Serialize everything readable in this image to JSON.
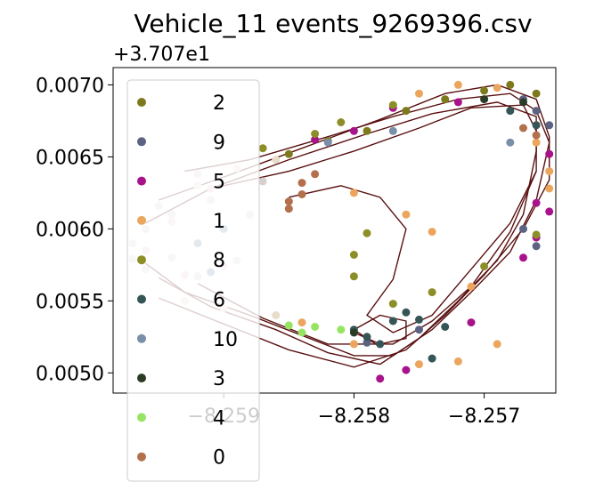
{
  "chart_data": {
    "type": "scatter",
    "title": "Vehicle_11 events_9269396.csv",
    "y_offset_label": "+3.707e1",
    "xlabel": "",
    "ylabel": "",
    "xlim": [
      -8.25985,
      -8.25645
    ],
    "ylim": [
      0.00486,
      0.00712
    ],
    "x_ticks": [
      {
        "value": -8.259,
        "label": "−8.259"
      },
      {
        "value": -8.258,
        "label": "−8.258"
      },
      {
        "value": -8.257,
        "label": "−8.257"
      }
    ],
    "y_ticks": [
      {
        "value": 0.005,
        "label": "0.0050"
      },
      {
        "value": 0.0055,
        "label": "0.0055"
      },
      {
        "value": 0.006,
        "label": "0.0060"
      },
      {
        "value": 0.0065,
        "label": "0.0065"
      },
      {
        "value": 0.007,
        "label": "0.0070"
      }
    ],
    "grid": false,
    "legend_position": "upper-left",
    "trajectory_color": "#5a1010",
    "series": [
      {
        "name": "2",
        "color": "#7d7a1e",
        "points": [
          [
            -8.2585,
            0.00652
          ],
          [
            -8.2582,
            0.00661
          ],
          [
            -8.2579,
            0.00668
          ],
          [
            -8.2576,
            0.00682
          ],
          [
            -8.2573,
            0.0069
          ],
          [
            -8.257,
            0.00696
          ],
          [
            -8.2568,
            0.007
          ],
          [
            -8.2566,
            0.00694
          ]
        ]
      },
      {
        "name": "9",
        "color": "#5b6282",
        "points": [
          [
            -8.2567,
            0.0069
          ],
          [
            -8.2566,
            0.00682
          ],
          [
            -8.2565,
            0.00672
          ],
          [
            -8.2567,
            0.006
          ],
          [
            -8.2566,
            0.00588
          ],
          [
            -8.2575,
            0.0053
          ],
          [
            -8.2579,
            0.00521
          ]
        ]
      },
      {
        "name": "5",
        "color": "#a8138b",
        "points": [
          [
            -8.2583,
            0.00662
          ],
          [
            -8.258,
            0.00668
          ],
          [
            -8.2577,
            0.00684
          ],
          [
            -8.2572,
            0.00688
          ],
          [
            -8.2566,
            0.00618
          ],
          [
            -8.2565,
            0.00612
          ],
          [
            -8.2566,
            0.00594
          ],
          [
            -8.2567,
            0.0058
          ],
          [
            -8.2576,
            0.00502
          ],
          [
            -8.2578,
            0.00496
          ],
          [
            -8.2571,
            0.00535
          ],
          [
            -8.2565,
            0.00652
          ]
        ]
      },
      {
        "name": "1",
        "color": "#eba55c",
        "points": [
          [
            -8.258,
            0.00625
          ],
          [
            -8.2576,
            0.0061
          ],
          [
            -8.2574,
            0.00598
          ],
          [
            -8.2571,
            0.0056
          ],
          [
            -8.2569,
            0.0052
          ],
          [
            -8.2572,
            0.00508
          ],
          [
            -8.2575,
            0.00506
          ],
          [
            -8.258,
            0.0052
          ],
          [
            -8.2584,
            0.00535
          ],
          [
            -8.2575,
            0.00694
          ],
          [
            -8.2572,
            0.007
          ],
          [
            -8.2569,
            0.00698
          ],
          [
            -8.2566,
            0.0066
          ],
          [
            -8.2565,
            0.0064
          ],
          [
            -8.2565,
            0.00628
          ]
        ]
      },
      {
        "name": "8",
        "color": "#8c8e28",
        "points": [
          [
            -8.2579,
            0.00597
          ],
          [
            -8.258,
            0.00582
          ],
          [
            -8.258,
            0.00567
          ],
          [
            -8.2577,
            0.00548
          ],
          [
            -8.2574,
            0.00556
          ],
          [
            -8.257,
            0.00574
          ],
          [
            -8.2566,
            0.00596
          ],
          [
            -8.2577,
            0.00686
          ],
          [
            -8.2581,
            0.00674
          ],
          [
            -8.2583,
            0.00666
          ],
          [
            -8.2587,
            0.00656
          ]
        ]
      },
      {
        "name": "6",
        "color": "#355557",
        "points": [
          [
            -8.2579,
            0.00525
          ],
          [
            -8.2577,
            0.00536
          ],
          [
            -8.2575,
            0.00537
          ],
          [
            -8.2573,
            0.00532
          ],
          [
            -8.2578,
            0.0052
          ],
          [
            -8.258,
            0.0053
          ],
          [
            -8.2576,
            0.00542
          ],
          [
            -8.2566,
            0.00672
          ],
          [
            -8.2568,
            0.00682
          ],
          [
            -8.2574,
            0.0051
          ]
        ]
      },
      {
        "name": "10",
        "color": "#7a8fa8",
        "points": [
          [
            -8.259,
            0.006
          ],
          [
            -8.2592,
            0.0059
          ],
          [
            -8.2591,
            0.0057
          ],
          [
            -8.2582,
            0.0066
          ],
          [
            -8.2577,
            0.00668
          ],
          [
            -8.2568,
            0.0066
          ]
        ]
      },
      {
        "name": "3",
        "color": "#2c3b26",
        "points": [
          [
            -8.2567,
            0.00688
          ],
          [
            -8.257,
            0.0069
          ],
          [
            -8.258,
            0.00528
          ]
        ]
      },
      {
        "name": "4",
        "color": "#97e462",
        "points": [
          [
            -8.2585,
            0.00533
          ],
          [
            -8.2583,
            0.00532
          ],
          [
            -8.2581,
            0.0053
          ],
          [
            -8.2584,
            0.00528
          ]
        ]
      },
      {
        "name": "0",
        "color": "#b2704c",
        "points": [
          [
            -8.2567,
            0.0067
          ],
          [
            -8.2566,
            0.00665
          ],
          [
            -8.2583,
            0.00638
          ],
          [
            -8.2584,
            0.00632
          ],
          [
            -8.2585,
            0.00619
          ],
          [
            -8.2585,
            0.00614
          ],
          [
            -8.2584,
            0.00624
          ]
        ]
      },
      {
        "name": "",
        "color": "#d9cfcf",
        "points": [
          [
            -8.2594,
            0.0061
          ],
          [
            -8.2596,
            0.006
          ],
          [
            -8.2597,
            0.0059
          ],
          [
            -8.2597,
            0.00579
          ],
          [
            -8.2596,
            0.00572
          ],
          [
            -8.2592,
            0.00567
          ],
          [
            -8.2589,
            0.00578
          ],
          [
            -8.2588,
            0.0061
          ],
          [
            -8.2591,
            0.0062
          ],
          [
            -8.2587,
            0.00633
          ],
          [
            -8.2592,
            0.00638
          ],
          [
            -8.2595,
            0.00616
          ],
          [
            -8.2594,
            0.0058
          ]
        ]
      },
      {
        "name": "",
        "color": "#e8c9dc",
        "points": [
          [
            -8.2594,
            0.00605
          ],
          [
            -8.2596,
            0.00585
          ],
          [
            -8.2593,
            0.00568
          ],
          [
            -8.259,
            0.00574
          ],
          [
            -8.2591,
            0.00628
          ]
        ]
      },
      {
        "name": "",
        "color": "#e8dccb",
        "points": [
          [
            -8.2589,
            0.00642
          ],
          [
            -8.2586,
            0.00648
          ],
          [
            -8.2592,
            0.0063
          ],
          [
            -8.2593,
            0.0055
          ],
          [
            -8.259,
            0.00545
          ],
          [
            -8.2586,
            0.0054
          ]
        ]
      }
    ],
    "trajectories": [
      [
        [
          -8.2593,
          0.0064
        ],
        [
          -8.2588,
          0.00648
        ],
        [
          -8.2582,
          0.00664
        ],
        [
          -8.2577,
          0.00678
        ],
        [
          -8.2572,
          0.0069
        ],
        [
          -8.2568,
          0.00694
        ],
        [
          -8.2566,
          0.00682
        ],
        [
          -8.2565,
          0.0066
        ],
        [
          -8.2566,
          0.0062
        ],
        [
          -8.2568,
          0.00584
        ],
        [
          -8.2571,
          0.00556
        ],
        [
          -8.2574,
          0.0053
        ],
        [
          -8.2577,
          0.00512
        ],
        [
          -8.258,
          0.00512
        ],
        [
          -8.2584,
          0.00526
        ],
        [
          -8.2588,
          0.0054
        ],
        [
          -8.2593,
          0.00556
        ],
        [
          -8.2596,
          0.00576
        ]
      ],
      [
        [
          -8.2596,
          0.00604
        ],
        [
          -8.2591,
          0.00628
        ],
        [
          -8.2585,
          0.00648
        ],
        [
          -8.2579,
          0.00666
        ],
        [
          -8.2574,
          0.0068
        ],
        [
          -8.2569,
          0.00688
        ],
        [
          -8.2566,
          0.00678
        ],
        [
          -8.2566,
          0.00654
        ],
        [
          -8.2567,
          0.0061
        ],
        [
          -8.2569,
          0.00578
        ],
        [
          -8.2572,
          0.0055
        ],
        [
          -8.2575,
          0.00524
        ],
        [
          -8.2578,
          0.00506
        ],
        [
          -8.2582,
          0.00514
        ],
        [
          -8.2586,
          0.0053
        ],
        [
          -8.2591,
          0.00546
        ],
        [
          -8.2595,
          0.00566
        ]
      ],
      [
        [
          -8.2595,
          0.0062
        ],
        [
          -8.259,
          0.00636
        ],
        [
          -8.2584,
          0.00656
        ],
        [
          -8.2578,
          0.00676
        ],
        [
          -8.2573,
          0.00694
        ],
        [
          -8.2569,
          0.007
        ],
        [
          -8.2566,
          0.0069
        ],
        [
          -8.2565,
          0.00664
        ],
        [
          -8.2565,
          0.00634
        ],
        [
          -8.2567,
          0.006
        ],
        [
          -8.257,
          0.00568
        ],
        [
          -8.2573,
          0.0054
        ],
        [
          -8.2576,
          0.00516
        ],
        [
          -8.258,
          0.00504
        ],
        [
          -8.2585,
          0.00516
        ],
        [
          -8.259,
          0.00534
        ],
        [
          -8.2595,
          0.00552
        ]
      ],
      [
        [
          -8.2585,
          0.00622
        ],
        [
          -8.2581,
          0.0063
        ],
        [
          -8.2578,
          0.00622
        ],
        [
          -8.2576,
          0.006
        ],
        [
          -8.2577,
          0.00565
        ],
        [
          -8.2579,
          0.0054
        ],
        [
          -8.2577,
          0.00528
        ],
        [
          -8.2574,
          0.0054
        ],
        [
          -8.2571,
          0.00572
        ],
        [
          -8.2568,
          0.00604
        ],
        [
          -8.2566,
          0.0064
        ]
      ],
      [
        [
          -8.258,
          0.00528
        ],
        [
          -8.2578,
          0.0052
        ],
        [
          -8.2576,
          0.00524
        ],
        [
          -8.2576,
          0.00536
        ],
        [
          -8.2578,
          0.0054
        ],
        [
          -8.258,
          0.0053
        ],
        [
          -8.2578,
          0.00518
        ]
      ],
      [
        [
          -8.259,
          0.0063
        ],
        [
          -8.2585,
          0.0064
        ],
        [
          -8.258,
          0.00654
        ],
        [
          -8.2575,
          0.0067
        ],
        [
          -8.2571,
          0.00684
        ],
        [
          -8.2567,
          0.00686
        ],
        [
          -8.2566,
          0.00668
        ],
        [
          -8.2566,
          0.0064
        ],
        [
          -8.2568,
          0.00598
        ],
        [
          -8.2571,
          0.0056
        ],
        [
          -8.2574,
          0.00536
        ],
        [
          -8.2577,
          0.0052
        ],
        [
          -8.2582,
          0.0052
        ],
        [
          -8.2587,
          0.00538
        ],
        [
          -8.2592,
          0.00562
        ]
      ]
    ]
  }
}
